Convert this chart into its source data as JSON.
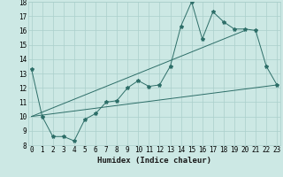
{
  "title": "",
  "xlabel": "Humidex (Indice chaleur)",
  "bg_color": "#cce8e4",
  "line_color": "#2d6e68",
  "xmin": 0,
  "xmax": 23,
  "ymin": 8,
  "ymax": 18,
  "line1_x": [
    0,
    1,
    2,
    3,
    4,
    5,
    6,
    7,
    8,
    9,
    10,
    11,
    12,
    13,
    14,
    15,
    16,
    17,
    18,
    19,
    20,
    21,
    22,
    23
  ],
  "line1_y": [
    13.3,
    10.0,
    8.6,
    8.6,
    8.3,
    9.8,
    10.2,
    11.0,
    11.1,
    12.0,
    12.5,
    12.1,
    12.2,
    13.5,
    16.3,
    18.0,
    15.4,
    17.3,
    16.6,
    16.1,
    16.1,
    16.0,
    13.5,
    12.2
  ],
  "line2_x": [
    0,
    23
  ],
  "line2_y": [
    10.0,
    12.2
  ],
  "line3_x": [
    0,
    20
  ],
  "line3_y": [
    10.0,
    16.0
  ],
  "grid_color": "#aacfcb",
  "marker": "*",
  "marker_size": 3,
  "label_fontsize": 6.5,
  "tick_fontsize": 5.5
}
